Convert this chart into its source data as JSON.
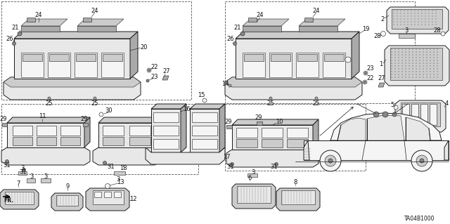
{
  "bg_color": "#ffffff",
  "line_color": "#1a1a1a",
  "dash_color": "#555555",
  "diagram_code": "TA04B1000",
  "font_size": 6.0,
  "gray_light": "#e8e8e8",
  "gray_mid": "#cccccc",
  "gray_dark": "#aaaaaa",
  "gray_darker": "#888888",
  "gray_fill": "#d4d4d4",
  "white": "#f5f5f5"
}
